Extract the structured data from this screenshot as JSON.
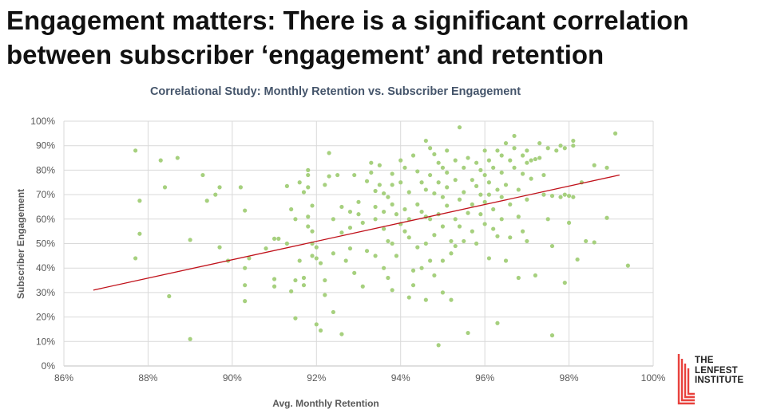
{
  "headline": {
    "line1": "Engagement matters: There is a significant correlation",
    "line2": "between subscriber ‘engagement’ and retention"
  },
  "logo": {
    "line1": "THE",
    "line2": "LENFEST",
    "line3": "INSTITUTE",
    "color": "#e8413c"
  },
  "chart_data": {
    "type": "scatter",
    "title": "Correlational Study: Monthly Retention vs. Subscriber Engagement",
    "xlabel": "Avg. Monthly Retention",
    "ylabel": "Subscriber Engagement",
    "xlim": [
      86,
      100
    ],
    "ylim": [
      0,
      100
    ],
    "xticks": [
      86,
      88,
      90,
      92,
      94,
      96,
      98,
      100
    ],
    "xtick_labels": [
      "86%",
      "88%",
      "90%",
      "92%",
      "94%",
      "96%",
      "98%",
      "100%"
    ],
    "yticks": [
      0,
      10,
      20,
      30,
      40,
      50,
      60,
      70,
      80,
      90,
      100
    ],
    "ytick_labels": [
      "0%",
      "10%",
      "20%",
      "30%",
      "40%",
      "50%",
      "60%",
      "70%",
      "80%",
      "90%",
      "100%"
    ],
    "grid": true,
    "point_color": "#a6d07e",
    "trend_color": "#c0111a",
    "title_color": "#44546a",
    "trendline": {
      "x": [
        86.7,
        99.2
      ],
      "y": [
        31,
        78
      ]
    },
    "points": [
      [
        87.7,
        88
      ],
      [
        87.8,
        67.5
      ],
      [
        87.8,
        54
      ],
      [
        87.7,
        44
      ],
      [
        88.3,
        84
      ],
      [
        88.4,
        73
      ],
      [
        88.5,
        28.5
      ],
      [
        88.7,
        85
      ],
      [
        89.0,
        11
      ],
      [
        89.0,
        51.5
      ],
      [
        89.3,
        78
      ],
      [
        89.4,
        67.5
      ],
      [
        89.7,
        73
      ],
      [
        89.6,
        70
      ],
      [
        89.7,
        48.5
      ],
      [
        89.9,
        43
      ],
      [
        90.2,
        73
      ],
      [
        90.3,
        63.5
      ],
      [
        90.3,
        40
      ],
      [
        90.4,
        44
      ],
      [
        90.3,
        33
      ],
      [
        90.3,
        26.5
      ],
      [
        90.8,
        48
      ],
      [
        91.0,
        52
      ],
      [
        91.1,
        52
      ],
      [
        91.0,
        35.5
      ],
      [
        91.0,
        32.5
      ],
      [
        91.3,
        73.5
      ],
      [
        91.3,
        50
      ],
      [
        91.4,
        64
      ],
      [
        91.5,
        60
      ],
      [
        91.5,
        35
      ],
      [
        91.4,
        30.5
      ],
      [
        91.5,
        19.5
      ],
      [
        91.6,
        75
      ],
      [
        91.6,
        43
      ],
      [
        91.7,
        36
      ],
      [
        91.7,
        33
      ],
      [
        91.7,
        71
      ],
      [
        91.8,
        78
      ],
      [
        91.8,
        80
      ],
      [
        91.8,
        73
      ],
      [
        91.8,
        61
      ],
      [
        91.8,
        57
      ],
      [
        91.9,
        65.5
      ],
      [
        91.9,
        55
      ],
      [
        91.9,
        50
      ],
      [
        92.0,
        48.5
      ],
      [
        91.9,
        45
      ],
      [
        92.0,
        44
      ],
      [
        92.1,
        42
      ],
      [
        92.0,
        17
      ],
      [
        92.1,
        14.5
      ],
      [
        92.2,
        74
      ],
      [
        92.2,
        35
      ],
      [
        92.2,
        29
      ],
      [
        92.3,
        87
      ],
      [
        92.3,
        77.5
      ],
      [
        92.4,
        60
      ],
      [
        92.4,
        46
      ],
      [
        92.5,
        78
      ],
      [
        92.4,
        22
      ],
      [
        92.6,
        65
      ],
      [
        92.6,
        54.5
      ],
      [
        92.7,
        43
      ],
      [
        92.6,
        13
      ],
      [
        92.8,
        63
      ],
      [
        92.8,
        56.5
      ],
      [
        92.8,
        48
      ],
      [
        92.9,
        78
      ],
      [
        92.9,
        38
      ],
      [
        93.0,
        67
      ],
      [
        93.0,
        62
      ],
      [
        93.1,
        58.5
      ],
      [
        93.2,
        75.5
      ],
      [
        93.2,
        47
      ],
      [
        93.1,
        32.5
      ],
      [
        93.3,
        83
      ],
      [
        93.3,
        79
      ],
      [
        93.4,
        71.5
      ],
      [
        93.4,
        65
      ],
      [
        93.4,
        60
      ],
      [
        93.4,
        45
      ],
      [
        93.5,
        82
      ],
      [
        93.5,
        74
      ],
      [
        93.6,
        70.5
      ],
      [
        93.6,
        63
      ],
      [
        93.6,
        56
      ],
      [
        93.6,
        40
      ],
      [
        93.7,
        69
      ],
      [
        93.7,
        51
      ],
      [
        93.7,
        36
      ],
      [
        93.8,
        78.5
      ],
      [
        93.8,
        74
      ],
      [
        93.8,
        66
      ],
      [
        93.9,
        62
      ],
      [
        93.8,
        50
      ],
      [
        93.9,
        45
      ],
      [
        93.8,
        31
      ],
      [
        94.0,
        84
      ],
      [
        94.0,
        75
      ],
      [
        94.0,
        58
      ],
      [
        94.1,
        81
      ],
      [
        94.1,
        64
      ],
      [
        94.1,
        55
      ],
      [
        94.2,
        71
      ],
      [
        94.2,
        60
      ],
      [
        94.2,
        52.5
      ],
      [
        94.2,
        28
      ],
      [
        94.3,
        39
      ],
      [
        94.3,
        33
      ],
      [
        94.3,
        86
      ],
      [
        94.4,
        79.5
      ],
      [
        94.4,
        66
      ],
      [
        94.4,
        48.5
      ],
      [
        94.5,
        75
      ],
      [
        94.5,
        63
      ],
      [
        94.5,
        40
      ],
      [
        94.6,
        92
      ],
      [
        94.6,
        72
      ],
      [
        94.6,
        61
      ],
      [
        94.6,
        50
      ],
      [
        94.6,
        27
      ],
      [
        94.7,
        89
      ],
      [
        94.7,
        78
      ],
      [
        94.7,
        60
      ],
      [
        94.7,
        43
      ],
      [
        94.8,
        86.5
      ],
      [
        94.8,
        70.5
      ],
      [
        94.8,
        53.5
      ],
      [
        94.8,
        37
      ],
      [
        94.9,
        83
      ],
      [
        94.9,
        75
      ],
      [
        94.9,
        62
      ],
      [
        94.9,
        8.5
      ],
      [
        95.0,
        81
      ],
      [
        95.0,
        69
      ],
      [
        95.0,
        57
      ],
      [
        95.0,
        43
      ],
      [
        95.0,
        30
      ],
      [
        95.1,
        88
      ],
      [
        95.1,
        79
      ],
      [
        95.1,
        73
      ],
      [
        95.1,
        65.5
      ],
      [
        95.2,
        51
      ],
      [
        95.2,
        46
      ],
      [
        95.2,
        27
      ],
      [
        95.3,
        84
      ],
      [
        95.3,
        76
      ],
      [
        95.3,
        60
      ],
      [
        95.3,
        49
      ],
      [
        95.4,
        97.5
      ],
      [
        95.4,
        68
      ],
      [
        95.4,
        57
      ],
      [
        95.5,
        81
      ],
      [
        95.5,
        71
      ],
      [
        95.5,
        51
      ],
      [
        95.6,
        85
      ],
      [
        95.6,
        62.5
      ],
      [
        95.6,
        13.5
      ],
      [
        95.7,
        76
      ],
      [
        95.7,
        66
      ],
      [
        95.7,
        55
      ],
      [
        95.8,
        83
      ],
      [
        95.8,
        73.5
      ],
      [
        95.8,
        50
      ],
      [
        95.9,
        80
      ],
      [
        95.9,
        70
      ],
      [
        95.9,
        62
      ],
      [
        96.0,
        88
      ],
      [
        96.0,
        78
      ],
      [
        96.0,
        67
      ],
      [
        96.0,
        58
      ],
      [
        96.1,
        84
      ],
      [
        96.1,
        75
      ],
      [
        96.1,
        70
      ],
      [
        96.1,
        44
      ],
      [
        96.2,
        81
      ],
      [
        96.2,
        64
      ],
      [
        96.2,
        56
      ],
      [
        96.3,
        88
      ],
      [
        96.3,
        72
      ],
      [
        96.3,
        53
      ],
      [
        96.3,
        17.5
      ],
      [
        96.4,
        86
      ],
      [
        96.4,
        79
      ],
      [
        96.4,
        69
      ],
      [
        96.4,
        60
      ],
      [
        96.5,
        91
      ],
      [
        96.5,
        74
      ],
      [
        96.5,
        43
      ],
      [
        96.6,
        84
      ],
      [
        96.6,
        66
      ],
      [
        96.6,
        52.5
      ],
      [
        96.7,
        94
      ],
      [
        96.7,
        89
      ],
      [
        96.7,
        81
      ],
      [
        96.8,
        72
      ],
      [
        96.8,
        61
      ],
      [
        96.8,
        36
      ],
      [
        96.9,
        86
      ],
      [
        96.9,
        78.5
      ],
      [
        96.9,
        55
      ],
      [
        97.0,
        88
      ],
      [
        97.0,
        83
      ],
      [
        97.0,
        68
      ],
      [
        97.0,
        51
      ],
      [
        97.1,
        84
      ],
      [
        97.1,
        76.5
      ],
      [
        97.2,
        84.5
      ],
      [
        97.2,
        37
      ],
      [
        97.3,
        91
      ],
      [
        97.3,
        85
      ],
      [
        97.4,
        78
      ],
      [
        97.4,
        70
      ],
      [
        97.5,
        89
      ],
      [
        97.5,
        60
      ],
      [
        97.6,
        49
      ],
      [
        97.6,
        69.5
      ],
      [
        97.6,
        12.5
      ],
      [
        97.7,
        88
      ],
      [
        97.8,
        90
      ],
      [
        97.8,
        69
      ],
      [
        97.9,
        89
      ],
      [
        97.9,
        34
      ],
      [
        97.9,
        70
      ],
      [
        98.0,
        69.5
      ],
      [
        98.0,
        58.5
      ],
      [
        98.1,
        90
      ],
      [
        98.1,
        92
      ],
      [
        98.1,
        69
      ],
      [
        98.2,
        43.5
      ],
      [
        98.3,
        75
      ],
      [
        98.4,
        51
      ],
      [
        98.6,
        82
      ],
      [
        98.6,
        50.5
      ],
      [
        98.9,
        81
      ],
      [
        98.9,
        60.5
      ],
      [
        99.1,
        95
      ],
      [
        99.4,
        41
      ]
    ]
  }
}
